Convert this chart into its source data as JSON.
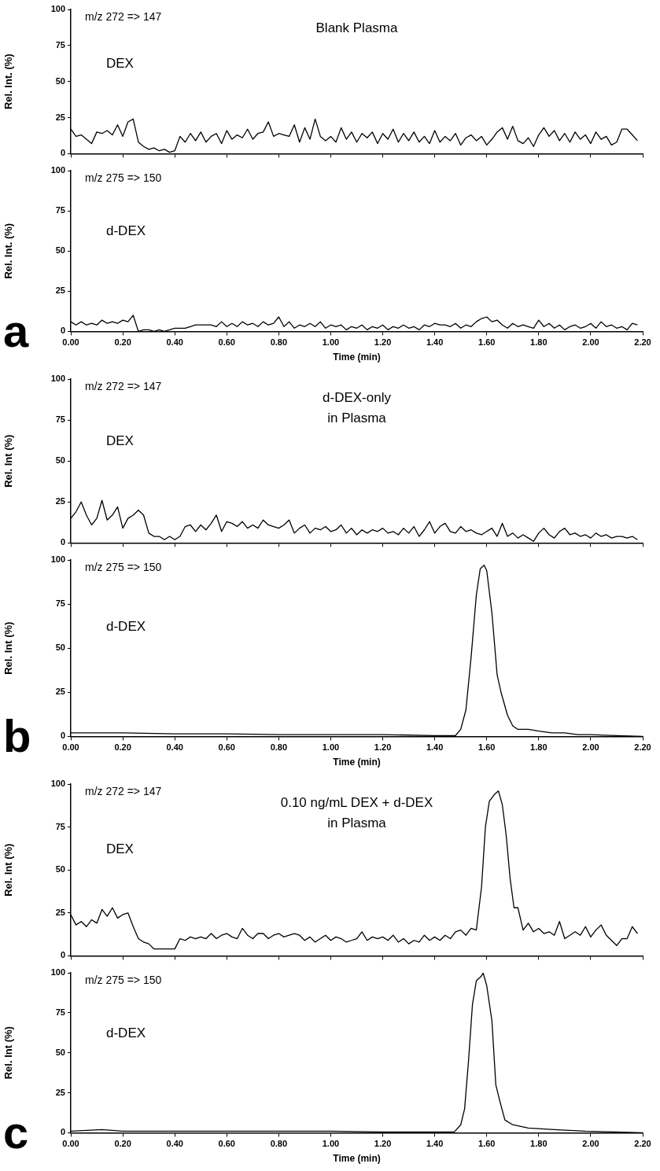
{
  "chart_data": [
    {
      "type": "line",
      "title": "Blank Plasma",
      "ylabel": "Rel. Int. (%)",
      "annotations": [
        "m/z 272 => 147",
        "DEX"
      ],
      "xlim": [
        0,
        2.2
      ],
      "ylim": [
        0,
        100
      ],
      "yticks": [
        0,
        25,
        50,
        75,
        100
      ],
      "xticks": [
        {
          "value": 0,
          "label": null
        },
        {
          "value": 0.2,
          "label": null
        },
        {
          "value": 0.4,
          "label": null
        },
        {
          "value": 0.6,
          "label": null
        },
        {
          "value": 0.8,
          "label": null
        },
        {
          "value": 1,
          "label": null
        },
        {
          "value": 1.2,
          "label": null
        },
        {
          "value": 1.4,
          "label": null
        },
        {
          "value": 1.6,
          "label": null
        },
        {
          "value": 1.8,
          "label": null
        },
        {
          "value": 2,
          "label": null
        },
        {
          "value": 2.2,
          "label": null
        }
      ],
      "tick_labels": "y",
      "grid": false,
      "legend": false,
      "marker": "none",
      "line_style": "solid",
      "series": [
        {
          "color": "#000000",
          "x": [
            0,
            0.02,
            0.04,
            0.06,
            0.08,
            0.1,
            0.12,
            0.14,
            0.16,
            0.18,
            0.2,
            0.22,
            0.24,
            0.26,
            0.28,
            0.3,
            0.32,
            0.34,
            0.36,
            0.38,
            0.4,
            0.42,
            0.44,
            0.46,
            0.48,
            0.5,
            0.52,
            0.54,
            0.56,
            0.58,
            0.6,
            0.62,
            0.64,
            0.66,
            0.68,
            0.7,
            0.72,
            0.74,
            0.76,
            0.78,
            0.8,
            0.82,
            0.84,
            0.86,
            0.88,
            0.9,
            0.92,
            0.94,
            0.96,
            0.98,
            1,
            1.02,
            1.04,
            1.06,
            1.08,
            1.1,
            1.12,
            1.14,
            1.16,
            1.18,
            1.2,
            1.22,
            1.24,
            1.26,
            1.28,
            1.3,
            1.32,
            1.34,
            1.36,
            1.38,
            1.4,
            1.42,
            1.44,
            1.46,
            1.48,
            1.5,
            1.52,
            1.54,
            1.56,
            1.58,
            1.6,
            1.62,
            1.64,
            1.66,
            1.68,
            1.7,
            1.72,
            1.74,
            1.76,
            1.78,
            1.8,
            1.82,
            1.84,
            1.86,
            1.88,
            1.9,
            1.92,
            1.94,
            1.96,
            1.98,
            2,
            2.02,
            2.04,
            2.06,
            2.08,
            2.1,
            2.12,
            2.14,
            2.16,
            2.18
          ],
          "values": [
            17,
            12,
            13,
            10,
            7,
            15,
            14,
            16,
            13,
            20,
            12,
            22,
            24,
            8,
            5,
            3,
            4,
            2,
            3,
            1,
            2,
            12,
            8,
            14,
            9,
            15,
            8,
            12,
            14,
            7,
            16,
            10,
            13,
            11,
            17,
            10,
            14,
            15,
            22,
            12,
            14,
            13,
            12,
            20,
            8,
            18,
            10,
            24,
            12,
            9,
            12,
            8,
            18,
            10,
            15,
            8,
            14,
            11,
            15,
            7,
            14,
            10,
            17,
            8,
            14,
            9,
            15,
            8,
            12,
            7,
            16,
            8,
            12,
            9,
            14,
            6,
            11,
            13,
            9,
            12,
            6,
            10,
            15,
            18,
            10,
            19,
            9,
            7,
            11,
            5,
            13,
            18,
            12,
            16,
            9,
            14,
            8,
            15,
            10,
            13,
            7,
            15,
            10,
            12,
            6,
            8,
            17,
            17,
            13,
            9
          ]
        }
      ]
    },
    {
      "type": "line",
      "ylabel": "Rel. Int. (%)",
      "xlabel": "Time (min)",
      "annotations": [
        "m/z 275 => 150",
        "d-DEX",
        "a"
      ],
      "xlim": [
        0,
        2.2
      ],
      "ylim": [
        0,
        100
      ],
      "yticks": [
        0,
        25,
        50,
        75,
        100
      ],
      "xticks": [
        {
          "value": 0,
          "label": "0.00"
        },
        {
          "value": 0.2,
          "label": "0.20"
        },
        {
          "value": 0.4,
          "label": "0.40"
        },
        {
          "value": 0.6,
          "label": "0.60"
        },
        {
          "value": 0.8,
          "label": "0.80"
        },
        {
          "value": 1,
          "label": "1.00"
        },
        {
          "value": 1.2,
          "label": "1.20"
        },
        {
          "value": 1.4,
          "label": "1.40"
        },
        {
          "value": 1.6,
          "label": "1.60"
        },
        {
          "value": 1.8,
          "label": "1.80"
        },
        {
          "value": 2,
          "label": "2.00"
        },
        {
          "value": 2.2,
          "label": "2.20"
        }
      ],
      "grid": false,
      "legend": false,
      "marker": "none",
      "line_style": "solid",
      "series": [
        {
          "color": "#000000",
          "x": [
            0,
            0.02,
            0.04,
            0.06,
            0.08,
            0.1,
            0.12,
            0.14,
            0.16,
            0.18,
            0.2,
            0.22,
            0.24,
            0.26,
            0.28,
            0.3,
            0.32,
            0.34,
            0.36,
            0.38,
            0.4,
            0.42,
            0.44,
            0.46,
            0.48,
            0.5,
            0.52,
            0.54,
            0.56,
            0.58,
            0.6,
            0.62,
            0.64,
            0.66,
            0.68,
            0.7,
            0.72,
            0.74,
            0.76,
            0.78,
            0.8,
            0.82,
            0.84,
            0.86,
            0.88,
            0.9,
            0.92,
            0.94,
            0.96,
            0.98,
            1,
            1.02,
            1.04,
            1.06,
            1.08,
            1.1,
            1.12,
            1.14,
            1.16,
            1.18,
            1.2,
            1.22,
            1.24,
            1.26,
            1.28,
            1.3,
            1.32,
            1.34,
            1.36,
            1.38,
            1.4,
            1.42,
            1.44,
            1.46,
            1.48,
            1.5,
            1.52,
            1.54,
            1.56,
            1.58,
            1.6,
            1.62,
            1.64,
            1.66,
            1.68,
            1.7,
            1.72,
            1.74,
            1.76,
            1.78,
            1.8,
            1.82,
            1.84,
            1.86,
            1.88,
            1.9,
            1.92,
            1.94,
            1.96,
            1.98,
            2,
            2.02,
            2.04,
            2.06,
            2.08,
            2.1,
            2.12,
            2.14,
            2.16,
            2.18
          ],
          "values": [
            6,
            4,
            6,
            4,
            5,
            4,
            7,
            5,
            6,
            5,
            7,
            6,
            10,
            0,
            1,
            1,
            0,
            1,
            0,
            1,
            2,
            2,
            2,
            3,
            4,
            4,
            4,
            4,
            3,
            6,
            3,
            5,
            3,
            6,
            4,
            5,
            3,
            6,
            4,
            5,
            9,
            3,
            6,
            2,
            4,
            3,
            5,
            3,
            6,
            2,
            4,
            3,
            4,
            1,
            3,
            2,
            4,
            1,
            3,
            2,
            4,
            1,
            3,
            2,
            4,
            2,
            3,
            1,
            4,
            3,
            5,
            4,
            4,
            3,
            5,
            2,
            4,
            3,
            6,
            8,
            9,
            6,
            7,
            4,
            2,
            5,
            3,
            4,
            3,
            2,
            7,
            3,
            5,
            2,
            4,
            1,
            3,
            4,
            2,
            3,
            5,
            2,
            6,
            3,
            4,
            2,
            3,
            1,
            5,
            4
          ]
        }
      ]
    },
    {
      "type": "line",
      "title": "d-DEX-only\nin Plasma",
      "ylabel": "Rel. Int (%)",
      "annotations": [
        "m/z 272 => 147",
        "DEX"
      ],
      "xlim": [
        0,
        2.2
      ],
      "ylim": [
        0,
        100
      ],
      "yticks": [
        0,
        25,
        50,
        75,
        100
      ],
      "xticks": [
        {
          "value": 0,
          "label": null
        },
        {
          "value": 0.2,
          "label": null
        },
        {
          "value": 0.4,
          "label": null
        },
        {
          "value": 0.6,
          "label": null
        },
        {
          "value": 0.8,
          "label": null
        },
        {
          "value": 1,
          "label": null
        },
        {
          "value": 1.2,
          "label": null
        },
        {
          "value": 1.4,
          "label": null
        },
        {
          "value": 1.6,
          "label": null
        },
        {
          "value": 1.8,
          "label": null
        },
        {
          "value": 2,
          "label": null
        },
        {
          "value": 2.2,
          "label": null
        }
      ],
      "tick_labels": "y",
      "grid": false,
      "legend": false,
      "marker": "none",
      "line_style": "solid",
      "series": [
        {
          "color": "#000000",
          "x": [
            0,
            0.02,
            0.04,
            0.06,
            0.08,
            0.1,
            0.12,
            0.14,
            0.16,
            0.18,
            0.2,
            0.22,
            0.24,
            0.26,
            0.28,
            0.3,
            0.32,
            0.34,
            0.36,
            0.38,
            0.4,
            0.42,
            0.44,
            0.46,
            0.48,
            0.5,
            0.52,
            0.54,
            0.56,
            0.58,
            0.6,
            0.62,
            0.64,
            0.66,
            0.68,
            0.7,
            0.72,
            0.74,
            0.76,
            0.78,
            0.8,
            0.82,
            0.84,
            0.86,
            0.88,
            0.9,
            0.92,
            0.94,
            0.96,
            0.98,
            1,
            1.02,
            1.04,
            1.06,
            1.08,
            1.1,
            1.12,
            1.14,
            1.16,
            1.18,
            1.2,
            1.22,
            1.24,
            1.26,
            1.28,
            1.3,
            1.32,
            1.34,
            1.36,
            1.38,
            1.4,
            1.42,
            1.44,
            1.46,
            1.48,
            1.5,
            1.52,
            1.54,
            1.56,
            1.58,
            1.6,
            1.62,
            1.64,
            1.66,
            1.68,
            1.7,
            1.72,
            1.74,
            1.76,
            1.78,
            1.8,
            1.82,
            1.84,
            1.86,
            1.88,
            1.9,
            1.92,
            1.94,
            1.96,
            1.98,
            2,
            2.02,
            2.04,
            2.06,
            2.08,
            2.1,
            2.12,
            2.14,
            2.16,
            2.18
          ],
          "values": [
            15,
            19,
            25,
            17,
            11,
            15,
            26,
            14,
            17,
            22,
            9,
            15,
            17,
            20,
            17,
            6,
            4,
            4,
            2,
            4,
            2,
            4,
            10,
            11,
            7,
            11,
            8,
            12,
            17,
            7,
            13,
            12,
            10,
            13,
            9,
            11,
            9,
            14,
            11,
            10,
            9,
            11,
            14,
            6,
            9,
            11,
            6,
            9,
            8,
            10,
            7,
            8,
            11,
            6,
            9,
            5,
            8,
            6,
            8,
            7,
            9,
            6,
            7,
            5,
            9,
            6,
            10,
            4,
            8,
            13,
            6,
            10,
            12,
            7,
            6,
            10,
            7,
            8,
            6,
            5,
            7,
            9,
            4,
            12,
            4,
            6,
            3,
            5,
            3,
            1,
            6,
            9,
            5,
            3,
            7,
            9,
            5,
            6,
            4,
            5,
            3,
            6,
            4,
            5,
            3,
            4,
            4,
            3,
            4,
            2
          ]
        }
      ]
    },
    {
      "type": "line",
      "ylabel": "Rel. Int (%)",
      "xlabel": "Time (min)",
      "annotations": [
        "m/z 275 => 150",
        "d-DEX",
        "b"
      ],
      "xlim": [
        0,
        2.2
      ],
      "ylim": [
        0,
        100
      ],
      "yticks": [
        0,
        25,
        50,
        75,
        100
      ],
      "xticks": [
        {
          "value": 0,
          "label": "0.00"
        },
        {
          "value": 0.2,
          "label": "0.20"
        },
        {
          "value": 0.4,
          "label": "0.40"
        },
        {
          "value": 0.6,
          "label": "0.60"
        },
        {
          "value": 0.8,
          "label": "0.80"
        },
        {
          "value": 1,
          "label": "1.00"
        },
        {
          "value": 1.2,
          "label": "1.20"
        },
        {
          "value": 1.4,
          "label": "1.40"
        },
        {
          "value": 1.6,
          "label": "1.60"
        },
        {
          "value": 1.8,
          "label": "1.80"
        },
        {
          "value": 2,
          "label": "2.00"
        },
        {
          "value": 2.2,
          "label": "2.20"
        }
      ],
      "grid": false,
      "legend": false,
      "marker": "none",
      "line_style": "solid",
      "series": [
        {
          "color": "#000000",
          "x": [
            0,
            0.2,
            0.4,
            0.6,
            0.8,
            1,
            1.2,
            1.4,
            1.48,
            1.5,
            1.52,
            1.54,
            1.56,
            1.575,
            1.59,
            1.6,
            1.62,
            1.64,
            1.655,
            1.68,
            1.7,
            1.72,
            1.76,
            1.8,
            1.85,
            1.9,
            1.95,
            2,
            2.1,
            2.2
          ],
          "values": [
            2,
            2,
            1.5,
            1.5,
            1,
            1,
            1,
            0.5,
            0.5,
            4,
            15,
            45,
            80,
            95,
            97,
            94,
            70,
            35,
            25,
            12,
            6,
            4,
            4,
            3,
            2,
            2,
            1,
            1,
            0.5,
            0
          ]
        }
      ]
    },
    {
      "type": "line",
      "title": "0.10 ng/mL DEX + d-DEX\nin Plasma",
      "ylabel": "Rel. Int (%)",
      "annotations": [
        "m/z 272 => 147",
        "DEX"
      ],
      "xlim": [
        0,
        2.2
      ],
      "ylim": [
        0,
        100
      ],
      "yticks": [
        0,
        25,
        50,
        75,
        100
      ],
      "xticks": [
        {
          "value": 0,
          "label": null
        },
        {
          "value": 0.2,
          "label": null
        },
        {
          "value": 0.4,
          "label": null
        },
        {
          "value": 0.6,
          "label": null
        },
        {
          "value": 0.8,
          "label": null
        },
        {
          "value": 1,
          "label": null
        },
        {
          "value": 1.2,
          "label": null
        },
        {
          "value": 1.4,
          "label": null
        },
        {
          "value": 1.6,
          "label": null
        },
        {
          "value": 1.8,
          "label": null
        },
        {
          "value": 2,
          "label": null
        },
        {
          "value": 2.2,
          "label": null
        }
      ],
      "tick_labels": "y",
      "grid": false,
      "legend": false,
      "marker": "none",
      "line_style": "solid",
      "series": [
        {
          "color": "#000000",
          "x": [
            0,
            0.02,
            0.04,
            0.06,
            0.08,
            0.1,
            0.12,
            0.14,
            0.16,
            0.18,
            0.2,
            0.22,
            0.24,
            0.26,
            0.28,
            0.3,
            0.32,
            0.34,
            0.36,
            0.38,
            0.4,
            0.42,
            0.44,
            0.46,
            0.48,
            0.5,
            0.52,
            0.54,
            0.56,
            0.58,
            0.6,
            0.62,
            0.64,
            0.66,
            0.68,
            0.7,
            0.72,
            0.74,
            0.76,
            0.78,
            0.8,
            0.82,
            0.84,
            0.86,
            0.88,
            0.9,
            0.92,
            0.94,
            0.96,
            0.98,
            1,
            1.02,
            1.04,
            1.06,
            1.08,
            1.1,
            1.12,
            1.14,
            1.16,
            1.18,
            1.2,
            1.22,
            1.24,
            1.26,
            1.28,
            1.3,
            1.32,
            1.34,
            1.36,
            1.38,
            1.4,
            1.42,
            1.44,
            1.46,
            1.48,
            1.5,
            1.52,
            1.54,
            1.56,
            1.58,
            1.595,
            1.61,
            1.63,
            1.645,
            1.66,
            1.675,
            1.69,
            1.705,
            1.72,
            1.74,
            1.76,
            1.78,
            1.8,
            1.82,
            1.84,
            1.86,
            1.88,
            1.9,
            1.92,
            1.94,
            1.96,
            1.98,
            2,
            2.02,
            2.04,
            2.06,
            2.08,
            2.1,
            2.12,
            2.14,
            2.16,
            2.18
          ],
          "values": [
            24,
            18,
            20,
            17,
            21,
            19,
            27,
            23,
            28,
            22,
            24,
            25,
            17,
            10,
            8,
            7,
            4,
            4,
            4,
            4,
            4,
            10,
            9,
            11,
            10,
            11,
            10,
            13,
            10,
            12,
            13,
            11,
            10,
            16,
            12,
            10,
            13,
            13,
            10,
            12,
            13,
            11,
            12,
            13,
            12,
            9,
            11,
            8,
            10,
            12,
            9,
            11,
            10,
            8,
            9,
            10,
            14,
            9,
            11,
            10,
            11,
            9,
            12,
            8,
            10,
            7,
            9,
            8,
            12,
            9,
            11,
            9,
            12,
            10,
            14,
            15,
            12,
            16,
            15,
            40,
            75,
            90,
            94,
            96,
            88,
            70,
            45,
            28,
            28,
            15,
            19,
            14,
            16,
            13,
            14,
            12,
            20,
            10,
            12,
            14,
            12,
            17,
            11,
            15,
            18,
            12,
            9,
            6,
            10,
            10,
            17,
            13
          ]
        }
      ]
    },
    {
      "type": "line",
      "ylabel": "Rel. Int (%)",
      "xlabel": "Time (min)",
      "annotations": [
        "m/z 275 => 150",
        "d-DEX",
        "c"
      ],
      "xlim": [
        0,
        2.2
      ],
      "ylim": [
        0,
        100
      ],
      "yticks": [
        0,
        25,
        50,
        75,
        100
      ],
      "xticks": [
        {
          "value": 0,
          "label": "0.00"
        },
        {
          "value": 0.2,
          "label": "0.20"
        },
        {
          "value": 0.4,
          "label": "0.40"
        },
        {
          "value": 0.6,
          "label": "0.60"
        },
        {
          "value": 0.8,
          "label": "0.80"
        },
        {
          "value": 1,
          "label": "1.00"
        },
        {
          "value": 1.2,
          "label": "1.20"
        },
        {
          "value": 1.4,
          "label": "1.40"
        },
        {
          "value": 1.6,
          "label": "1.60"
        },
        {
          "value": 1.8,
          "label": "1.80"
        },
        {
          "value": 2,
          "label": "2.00"
        },
        {
          "value": 2.2,
          "label": "2.20"
        }
      ],
      "grid": false,
      "legend": false,
      "marker": "none",
      "line_style": "solid",
      "series": [
        {
          "color": "#000000",
          "x": [
            0,
            0.12,
            0.2,
            0.4,
            0.6,
            0.8,
            1,
            1.2,
            1.4,
            1.475,
            1.5,
            1.515,
            1.53,
            1.545,
            1.56,
            1.58,
            1.586,
            1.6,
            1.62,
            1.635,
            1.65,
            1.67,
            1.7,
            1.76,
            1.86,
            1.98,
            2.1,
            2.2
          ],
          "values": [
            1,
            2,
            1,
            1,
            1,
            1,
            1,
            0.5,
            0.5,
            0.5,
            5,
            15,
            45,
            80,
            95,
            98,
            100,
            92,
            70,
            30,
            20,
            8,
            5,
            3,
            2,
            1,
            0.5,
            0
          ]
        }
      ]
    }
  ]
}
